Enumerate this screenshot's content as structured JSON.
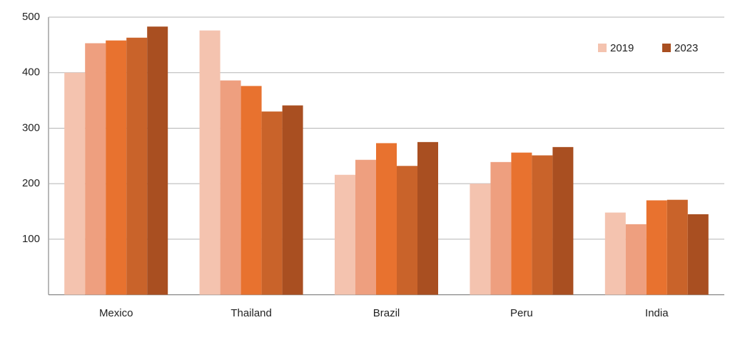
{
  "chart_data": {
    "type": "bar",
    "categories": [
      "Mexico",
      "Thailand",
      "Brazil",
      "Peru",
      "India"
    ],
    "series": [
      {
        "name": "2019",
        "color": "#f4c3af",
        "values": [
          400,
          476,
          216,
          200,
          148
        ]
      },
      {
        "color": "#ee9f7f",
        "values": [
          453,
          386,
          243,
          239,
          127
        ]
      },
      {
        "color": "#e8722f",
        "values": [
          458,
          376,
          273,
          256,
          170
        ]
      },
      {
        "color": "#c9632a",
        "values": [
          463,
          330,
          232,
          251,
          171
        ]
      },
      {
        "name": "2023",
        "color": "#a94f21",
        "values": [
          483,
          341,
          275,
          266,
          145
        ]
      }
    ],
    "ylim": [
      0,
      500
    ],
    "yticks": [
      100,
      200,
      300,
      400,
      500
    ],
    "grid": true,
    "legend": "top-right"
  }
}
